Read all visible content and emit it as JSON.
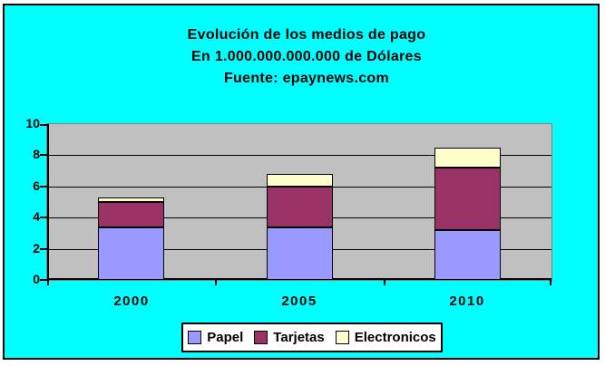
{
  "window": {
    "page_background": "#FFFFFF",
    "chart_background": "#00FFFF",
    "frame_border_color": "#000000"
  },
  "chart_data": {
    "type": "bar",
    "stacked": true,
    "title_lines": [
      "Evolución de los medios de pago",
      "En 1.000.000.000.000 de Dólares",
      "Fuente: epaynews.com"
    ],
    "categories": [
      "2000",
      "2005",
      "2010"
    ],
    "series": [
      {
        "name": "Papel",
        "color": "#9999FF",
        "values": [
          3.4,
          3.4,
          3.2
        ]
      },
      {
        "name": "Tarjetas",
        "color": "#993366",
        "values": [
          1.6,
          2.6,
          4.0
        ]
      },
      {
        "name": "Electronicos",
        "color": "#FFFFCC",
        "values": [
          0.3,
          0.8,
          1.3
        ]
      }
    ],
    "stack_totals": [
      5.3,
      6.8,
      8.5
    ],
    "xlabel": "",
    "ylabel": "",
    "y_axis": {
      "min": 0,
      "max": 10,
      "tick_interval": 2,
      "ticks": [
        0,
        2,
        4,
        6,
        8,
        10
      ]
    },
    "grid": true,
    "plot_background": "#C0C0C0",
    "gridline_color": "#000000",
    "legend": {
      "position": "bottom",
      "entries": [
        "Papel",
        "Tarjetas",
        "Electronicos"
      ]
    }
  }
}
